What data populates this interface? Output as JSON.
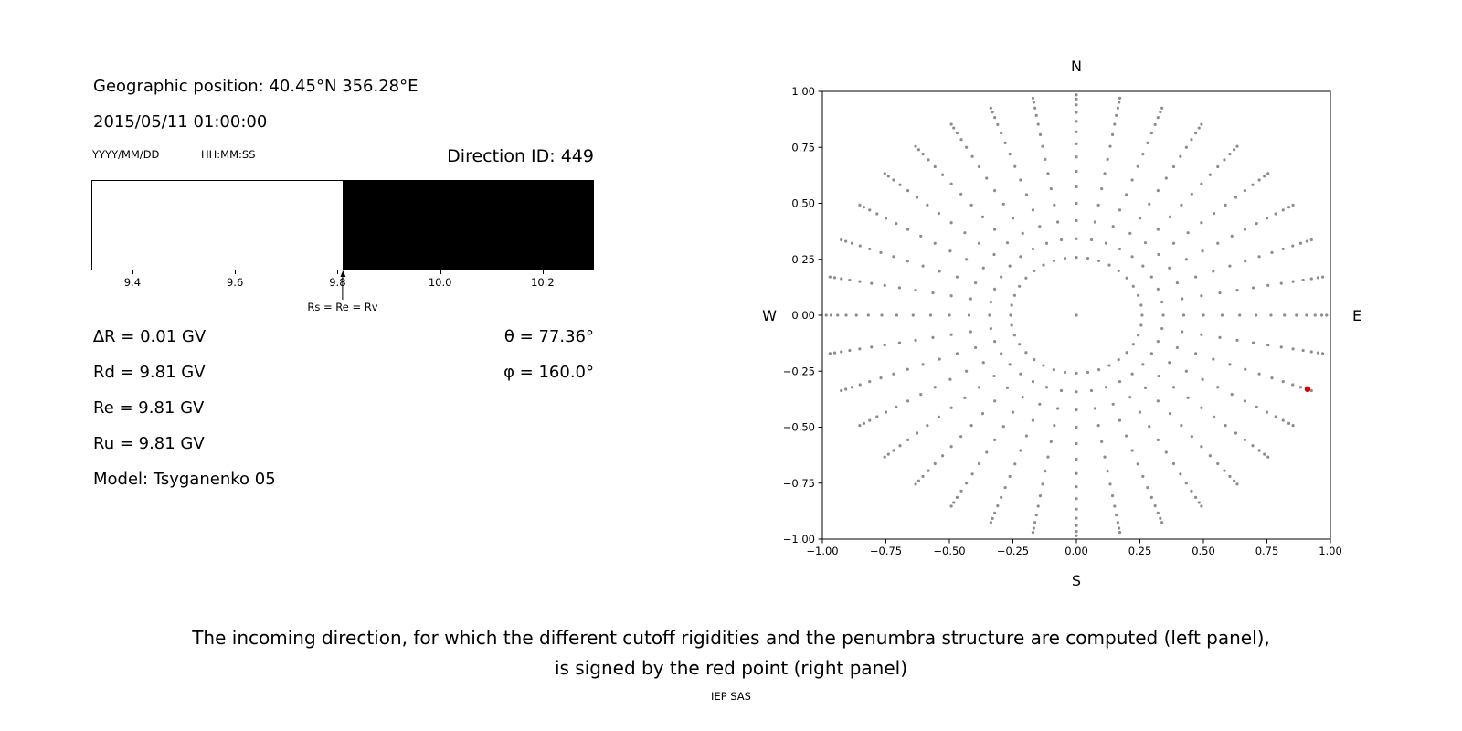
{
  "header": {
    "geo_position": "Geographic position: 40.45°N 356.28°E",
    "datetime": "2015/05/11 01:00:00",
    "date_format_label": "YYYY/MM/DD",
    "time_format_label": "HH:MM:SS",
    "direction_id": "Direction ID: 449"
  },
  "results": {
    "delta_r": "∆R = 0.01 GV",
    "rd": "Rd = 9.81 GV",
    "re": "Re = 9.81 GV",
    "ru": "Ru = 9.81 GV",
    "model": "Model: Tsyganenko 05",
    "theta": "θ = 77.36°",
    "phi": "φ = 160.0°"
  },
  "caption": {
    "line1": "The incoming direction, for which the different cutoff rigidities and the penumbra structure are computed (left panel),",
    "line2": "is signed by the red point (right panel)",
    "credit": "IEP SAS"
  },
  "chart_data": [
    {
      "type": "band",
      "title": "Penumbra structure (allowed = white, forbidden = black rigidity intervals)",
      "xlim": [
        9.32,
        10.3
      ],
      "xticks": [
        "9.4",
        "9.6",
        "9.8",
        "10.0",
        "10.2"
      ],
      "xtick_values": [
        9.4,
        9.6,
        9.8,
        10.0,
        10.2
      ],
      "regions": [
        {
          "from": 9.32,
          "to": 9.81,
          "color": "#ffffff",
          "meaning": "allowed"
        },
        {
          "from": 9.81,
          "to": 10.3,
          "color": "#000000",
          "meaning": "forbidden"
        }
      ],
      "marker": {
        "x": 9.81,
        "label": "Rs = Re = Rv"
      }
    },
    {
      "type": "scatter",
      "title": "Incoming directions map (radius = sin(zenith), azimuth grid), red point = selected direction",
      "xlim": [
        -1,
        1
      ],
      "ylim": [
        -1,
        1
      ],
      "xticks": [
        "−1.00",
        "−0.75",
        "−0.50",
        "−0.25",
        "0.00",
        "0.25",
        "0.50",
        "0.75",
        "1.00"
      ],
      "xtick_values": [
        -1,
        -0.75,
        -0.5,
        -0.25,
        0,
        0.25,
        0.5,
        0.75,
        1
      ],
      "yticks": [
        "1.00",
        "0.75",
        "0.50",
        "0.25",
        "0.00",
        "−0.25",
        "−0.50",
        "−0.75",
        "−1.00"
      ],
      "ytick_values": [
        1,
        0.75,
        0.5,
        0.25,
        0,
        -0.25,
        -0.5,
        -0.75,
        -1
      ],
      "axis_labels": {
        "top": "N",
        "bottom": "S",
        "left": "W",
        "right": "E"
      },
      "grid": {
        "azimuth_start_deg": 0,
        "azimuth_step_deg": 10,
        "zenith_min_deg": 15,
        "zenith_max_deg": 80,
        "zenith_step_deg": 5,
        "radius_rule": "sin(zenith)",
        "center_point": true
      },
      "point_color": "#8c8c8c",
      "point_radius_px": 1.6,
      "red_point": {
        "x": 0.91,
        "y": -0.33,
        "color": "#dd0000",
        "radius_px": 3.2
      }
    }
  ]
}
